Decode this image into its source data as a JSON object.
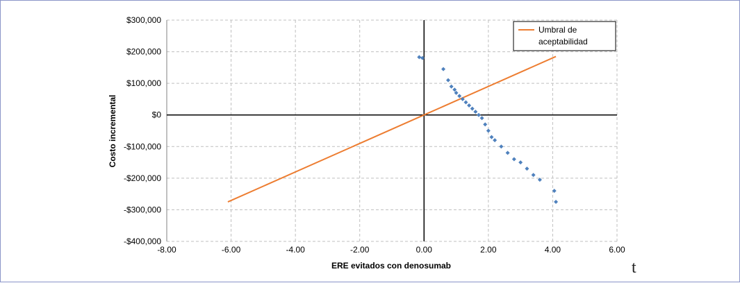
{
  "chart_data": {
    "type": "scatter",
    "xlabel": "ERE evitados con denosumab",
    "ylabel": "Costo incremental",
    "xlim": [
      -8,
      6
    ],
    "ylim": [
      -400000,
      300000
    ],
    "x_ticks": [
      -8,
      -6,
      -4,
      -2,
      0,
      2,
      4,
      6
    ],
    "x_tick_labels": [
      "-8.00",
      "-6.00",
      "-4.00",
      "-2.00",
      "0.00",
      "2.00",
      "4.00",
      "6.00"
    ],
    "y_ticks": [
      300000,
      200000,
      100000,
      0,
      -100000,
      -200000,
      -300000,
      -400000
    ],
    "y_tick_labels": [
      "$300,000",
      "$200,000",
      "$100,000",
      "$0",
      "-$100,000",
      "-$200,000",
      "-$300,000",
      "-$400,000"
    ],
    "grid": true,
    "legend_position": "top-right",
    "series": [
      {
        "name": "Umbral de aceptabilidad",
        "type": "line",
        "color": "#ed7d31",
        "x": [
          -6.1,
          0,
          4.1
        ],
        "y": [
          -275000,
          0,
          185000
        ]
      },
      {
        "type": "scatter",
        "color": "#4f81bd",
        "marker": "diamond",
        "x": [
          -0.15,
          -0.05,
          0.6,
          0.75,
          0.85,
          0.95,
          1.0,
          1.1,
          1.2,
          1.3,
          1.4,
          1.5,
          1.6,
          1.7,
          1.8,
          1.9,
          2.0,
          2.1,
          2.2,
          2.4,
          2.6,
          2.8,
          3.0,
          3.2,
          3.4,
          3.6,
          4.05,
          4.1
        ],
        "y": [
          183000,
          180000,
          145000,
          110000,
          90000,
          80000,
          70000,
          60000,
          50000,
          40000,
          30000,
          20000,
          10000,
          0,
          -10000,
          -30000,
          -50000,
          -70000,
          -80000,
          -100000,
          -120000,
          -140000,
          -150000,
          -170000,
          -190000,
          -205000,
          -240000,
          -275000
        ]
      }
    ],
    "legend": [
      "Umbral de aceptabilidad"
    ],
    "legend_lines": [
      "Umbral de",
      "aceptabilidad"
    ],
    "stray_glyph": "t"
  }
}
